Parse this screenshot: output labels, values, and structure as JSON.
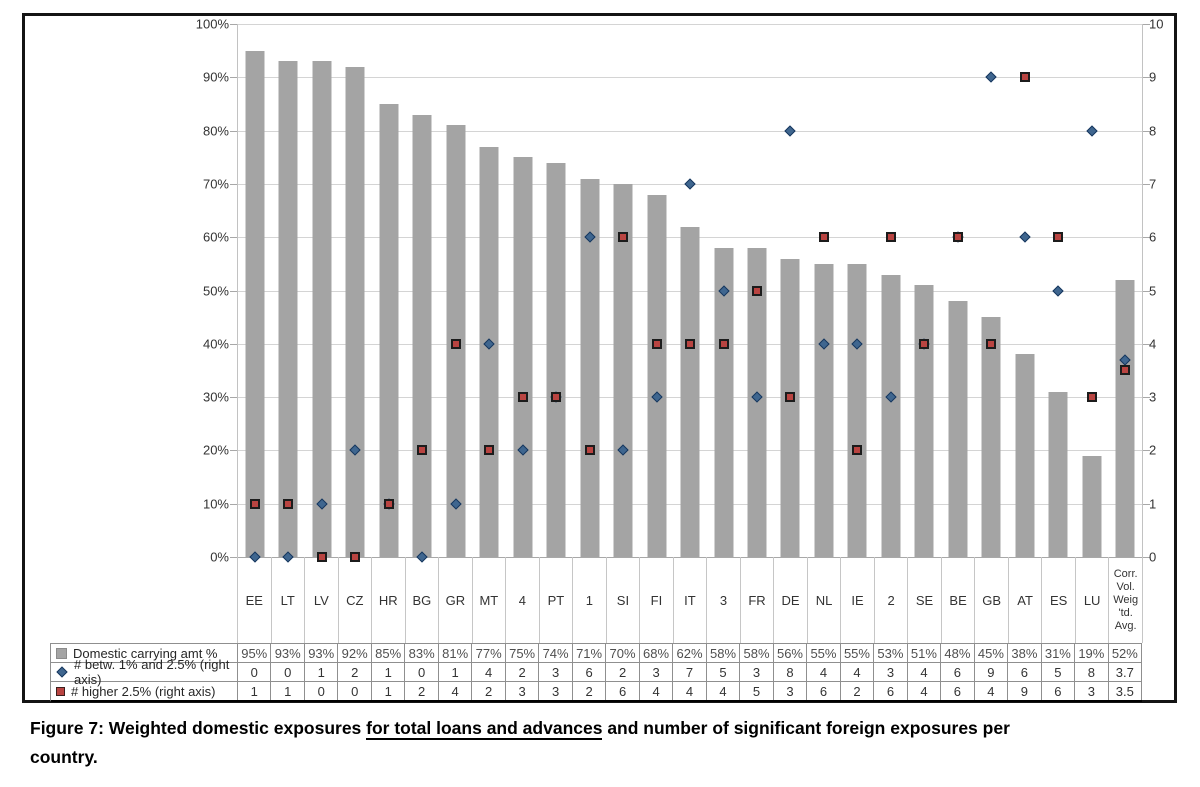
{
  "figure": {
    "caption": {
      "line1_prefix": "Figure 7: Weighted domestic exposures ",
      "line1_underlined": "for total loans and advances",
      "line1_suffix": " and number of significant foreign exposures per",
      "line2": "country."
    }
  },
  "chart_data": {
    "type": "combo: bar (left % axis) + scatter markers (right count axis)",
    "categories": [
      "EE",
      "LT",
      "LV",
      "CZ",
      "HR",
      "BG",
      "GR",
      "MT",
      "4",
      "PT",
      "1",
      "SI",
      "FI",
      "IT",
      "3",
      "FR",
      "DE",
      "NL",
      "IE",
      "2",
      "SE",
      "BE",
      "GB",
      "AT",
      "ES",
      "LU",
      "Corr. Vol. Weig 'td. Avg."
    ],
    "series": [
      {
        "name": "Domestic carrying amt %",
        "type": "bar",
        "axis": "left",
        "marker": "gray-square",
        "color": "#a4a4a4",
        "values": [
          95,
          93,
          93,
          92,
          85,
          83,
          81,
          77,
          75,
          74,
          71,
          70,
          68,
          62,
          58,
          58,
          56,
          55,
          55,
          53,
          51,
          48,
          45,
          38,
          31,
          19,
          52
        ]
      },
      {
        "name": "# betw. 1% and 2.5% (right axis)",
        "type": "scatter",
        "axis": "right",
        "marker": "blue-diamond",
        "color": "#3f668f",
        "values": [
          0,
          0,
          1,
          2,
          1,
          0,
          1,
          4,
          2,
          3,
          6,
          2,
          3,
          7,
          5,
          3,
          8,
          4,
          4,
          3,
          4,
          6,
          9,
          6,
          5,
          8,
          3.7
        ]
      },
      {
        "name": "# higher 2.5% (right axis)",
        "type": "scatter",
        "axis": "right",
        "marker": "red-square",
        "color": "#b94441",
        "values": [
          1,
          1,
          0,
          0,
          1,
          2,
          4,
          2,
          3,
          3,
          2,
          6,
          4,
          4,
          4,
          5,
          3,
          6,
          2,
          6,
          4,
          6,
          4,
          9,
          6,
          3,
          3.5
        ]
      }
    ],
    "left_axis": {
      "min": 0,
      "max": 100,
      "step": 10,
      "unit": "%",
      "tick_labels": [
        "0%",
        "10%",
        "20%",
        "30%",
        "40%",
        "50%",
        "60%",
        "70%",
        "80%",
        "90%",
        "100%"
      ]
    },
    "right_axis": {
      "min": 0,
      "max": 10,
      "step": 1,
      "tick_labels": [
        "0",
        "1",
        "2",
        "3",
        "4",
        "5",
        "6",
        "7",
        "8",
        "9",
        "10"
      ]
    },
    "grid": true,
    "legend_position": "table rows, bottom-left"
  },
  "table": {
    "rows": [
      {
        "marker": "gray-square",
        "label": "Domestic carrying amt %",
        "cells": [
          "95%",
          "93%",
          "93%",
          "92%",
          "85%",
          "83%",
          "81%",
          "77%",
          "75%",
          "74%",
          "71%",
          "70%",
          "68%",
          "62%",
          "58%",
          "58%",
          "56%",
          "55%",
          "55%",
          "53%",
          "51%",
          "48%",
          "45%",
          "38%",
          "31%",
          "19%",
          "52%"
        ]
      },
      {
        "marker": "blue-diamond",
        "label": "# betw. 1% and 2.5% (right axis)",
        "cells": [
          "0",
          "0",
          "1",
          "2",
          "1",
          "0",
          "1",
          "4",
          "2",
          "3",
          "6",
          "2",
          "3",
          "7",
          "5",
          "3",
          "8",
          "4",
          "4",
          "3",
          "4",
          "6",
          "9",
          "6",
          "5",
          "8",
          "3.7"
        ]
      },
      {
        "marker": "red-square",
        "label": "# higher 2.5% (right axis)",
        "cells": [
          "1",
          "1",
          "0",
          "0",
          "1",
          "2",
          "4",
          "2",
          "3",
          "3",
          "2",
          "6",
          "4",
          "4",
          "4",
          "5",
          "3",
          "6",
          "2",
          "6",
          "4",
          "6",
          "4",
          "9",
          "6",
          "3",
          "3.5"
        ]
      }
    ]
  },
  "colors": {
    "bar": "#a4a4a4",
    "diamond_fill": "#3f668f",
    "diamond_border": "#17375e",
    "square_fill": "#b94441",
    "square_border": "#1c1c1c",
    "gridline": "#d4d4d4",
    "axis_line": "#a8a8a8",
    "table_border": "#8f8f8f",
    "figure_border": "#141414"
  }
}
